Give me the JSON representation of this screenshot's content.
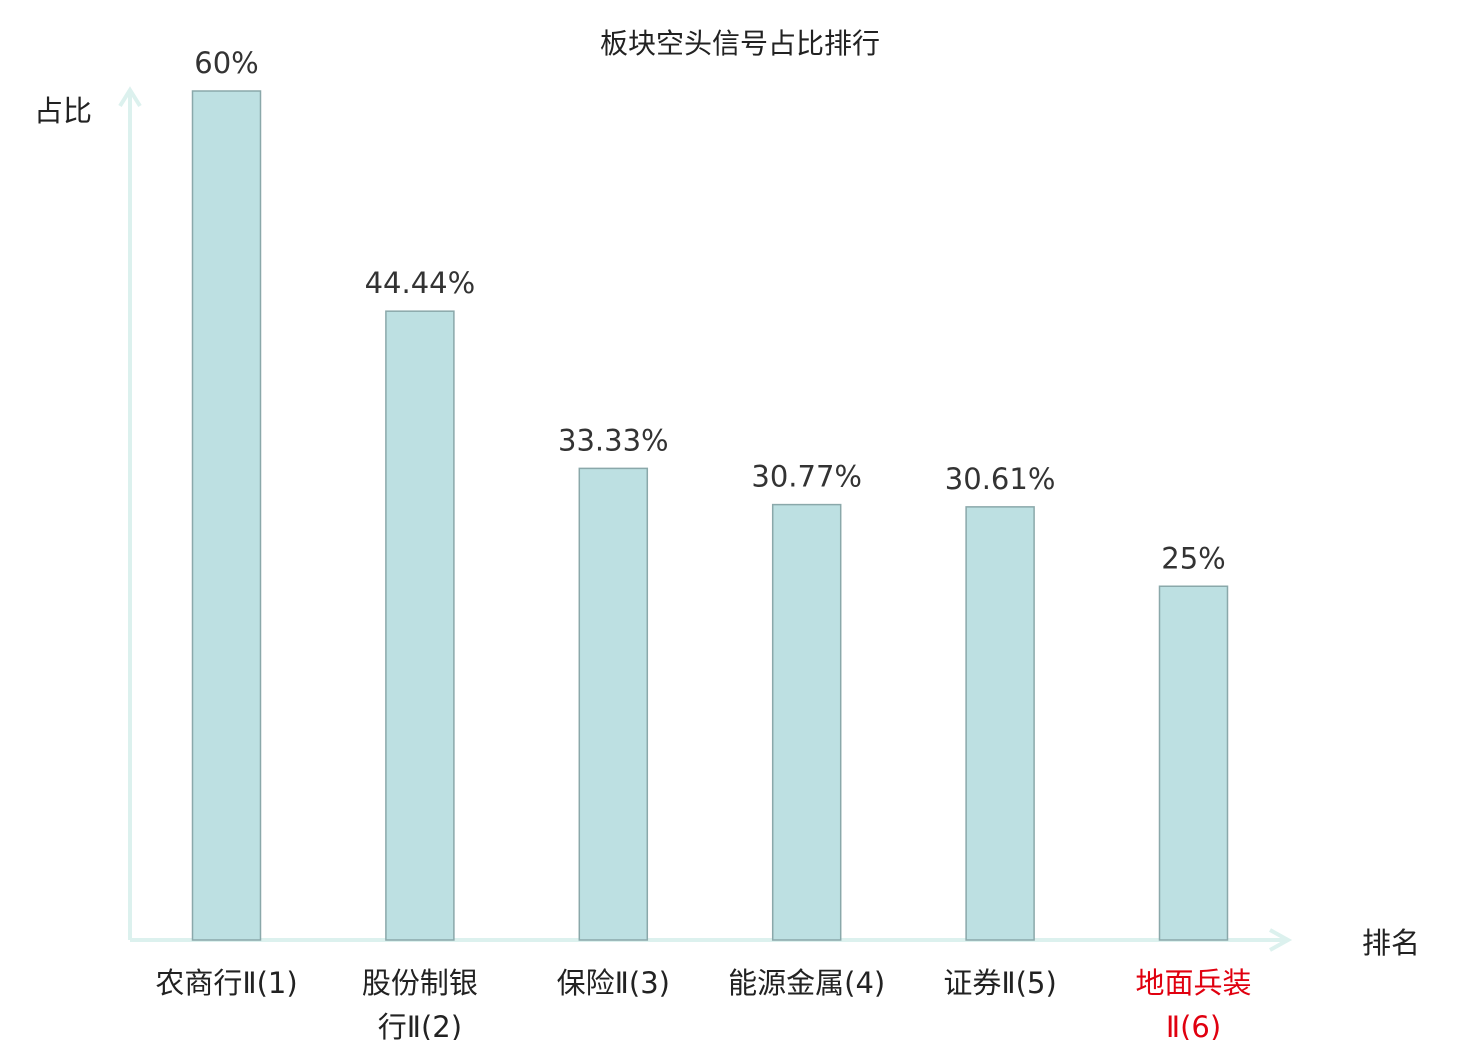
{
  "chart_data": {
    "type": "bar",
    "title": "板块空头信号占比排行",
    "ylabel": "占比",
    "xlabel": "排名",
    "ylim": [
      0,
      60
    ],
    "categories": [
      {
        "lines": [
          "农商行Ⅱ(1)"
        ],
        "highlight": false
      },
      {
        "lines": [
          "股份制银",
          "行Ⅱ(2)"
        ],
        "highlight": false
      },
      {
        "lines": [
          "保险Ⅱ(3)"
        ],
        "highlight": false
      },
      {
        "lines": [
          "能源金属(4)"
        ],
        "highlight": false
      },
      {
        "lines": [
          "证券Ⅱ(5)"
        ],
        "highlight": false
      },
      {
        "lines": [
          "地面兵装",
          "Ⅱ(6)"
        ],
        "highlight": true
      }
    ],
    "values": [
      60,
      44.44,
      33.33,
      30.77,
      30.61,
      25
    ],
    "value_labels": [
      "60%",
      "44.44%",
      "33.33%",
      "30.77%",
      "30.61%",
      "25%"
    ],
    "colors": {
      "bar_fill": "#bde0e2",
      "bar_stroke": "#8aa8aa",
      "axis": "#dcf1ee",
      "text": "#222222",
      "value_text": "#333333",
      "highlight": "#e0000f"
    }
  }
}
